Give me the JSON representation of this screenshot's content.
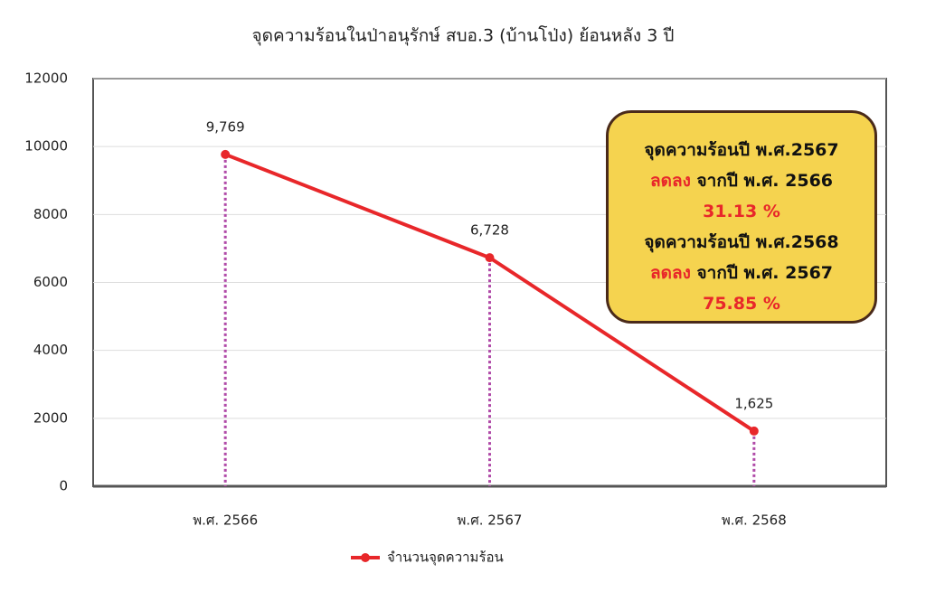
{
  "chart_data": {
    "type": "line",
    "title": "จุดความร้อนในป่าอนุรักษ์ สบอ.3 (บ้านโป่ง) ย้อนหลัง 3 ปี",
    "categories": [
      "พ.ศ. 2566",
      "พ.ศ. 2567",
      "พ.ศ. 2568"
    ],
    "series": [
      {
        "name": "จำนวนจุดความร้อน",
        "color": "#e8272a",
        "values": [
          9769,
          6728,
          1625
        ],
        "value_labels": [
          "9,769",
          "6,728",
          "1,625"
        ]
      }
    ],
    "ylim": [
      0,
      12000
    ],
    "yticks": [
      0,
      2000,
      4000,
      6000,
      8000,
      10000,
      12000
    ],
    "grid": true,
    "legend": "bottom",
    "annotation": {
      "lines": [
        [
          "จุดความร้อนปี พ.ศ.2567"
        ],
        [
          "ลดลง",
          "จากปี พ.ศ. 2566"
        ],
        [
          "31.13 %"
        ],
        [
          "จุดความร้อนปี พ.ศ.2568"
        ],
        [
          "ลดลง",
          "จากปี พ.ศ. 2567"
        ],
        [
          "75.85 %"
        ]
      ]
    }
  }
}
